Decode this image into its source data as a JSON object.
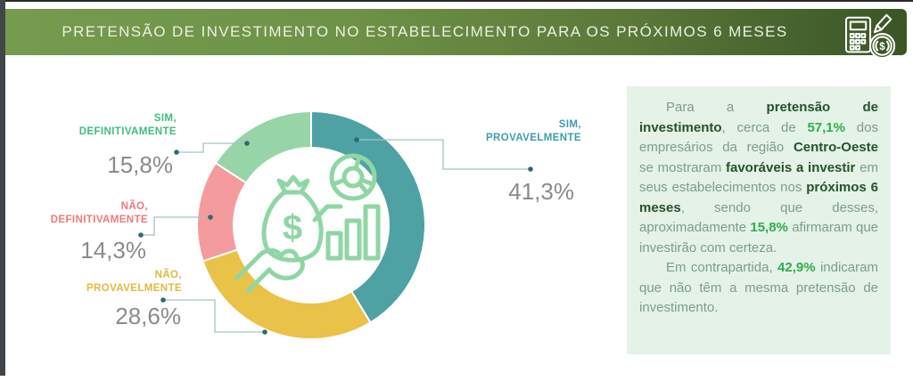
{
  "header": {
    "title": "PRETENSÃO DE INVESTIMENTO NO ESTABELECIMENTO PARA OS PRÓXIMOS 6 MESES",
    "icon": "calculator-pencil-coin-icon"
  },
  "chart_data": {
    "type": "donut",
    "unit": "%",
    "total": 100,
    "start_angle_deg": 0,
    "direction": "clockwise",
    "center_icon": "hand-money-bag-growth-icon",
    "slices": [
      {
        "label_line1": "SIM,",
        "label_line2": "PROVAVELMENTE",
        "value": 41.3,
        "value_label": "41,3%",
        "color": "#4ea2a4",
        "label_color": "#3e9dac"
      },
      {
        "label_line1": "NÃO,",
        "label_line2": "PROVAVELMENTE",
        "value": 28.6,
        "value_label": "28,6%",
        "color": "#e8c348",
        "label_color": "#e3b93c"
      },
      {
        "label_line1": "NÃO,",
        "label_line2": "DEFINITIVAMENTE",
        "value": 14.3,
        "value_label": "14,3%",
        "color": "#f49b9e",
        "label_color": "#f0787a"
      },
      {
        "label_line1": "SIM,",
        "label_line2": "DEFINITIVAMENTE",
        "value": 15.8,
        "value_label": "15,8%",
        "color": "#97d5a8",
        "label_color": "#3ebf7e"
      }
    ]
  },
  "textbox": {
    "background": "#e4f2e8",
    "paragraphs": [
      {
        "segments": [
          {
            "t": "Para a ",
            "s": "n"
          },
          {
            "t": "pretensão de investimento",
            "s": "b"
          },
          {
            "t": ", cerca de ",
            "s": "n"
          },
          {
            "t": "57,1%",
            "s": "g"
          },
          {
            "t": " dos empresários da região ",
            "s": "n"
          },
          {
            "t": "Centro-Oeste",
            "s": "b"
          },
          {
            "t": " se mostraram ",
            "s": "n"
          },
          {
            "t": "favoráveis a investir",
            "s": "b"
          },
          {
            "t": " em seus estabelecimentos nos ",
            "s": "n"
          },
          {
            "t": "próximos 6 meses",
            "s": "b"
          },
          {
            "t": ", sendo que desses, aproximadamente ",
            "s": "n"
          },
          {
            "t": "15,8%",
            "s": "g"
          },
          {
            "t": " afirmaram que investirão com certeza.",
            "s": "n"
          }
        ]
      },
      {
        "segments": [
          {
            "t": "Em contrapartida, ",
            "s": "n"
          },
          {
            "t": "42,9%",
            "s": "g"
          },
          {
            "t": " indicaram que não têm a mesma pretensão de investimento.",
            "s": "n"
          }
        ]
      }
    ]
  },
  "colors": {
    "normal_text": "#7e9c8b",
    "bold_text": "#24522c",
    "highlight_green": "#2fae4a",
    "pct_text": "#8b8b8b",
    "leader_line": "#a3c2c4",
    "leader_dot": "#2d6b72",
    "icon_green": "#8fd6a4",
    "header_text": "#eaf2e2",
    "textbox_bg": "#e4f2e8"
  }
}
